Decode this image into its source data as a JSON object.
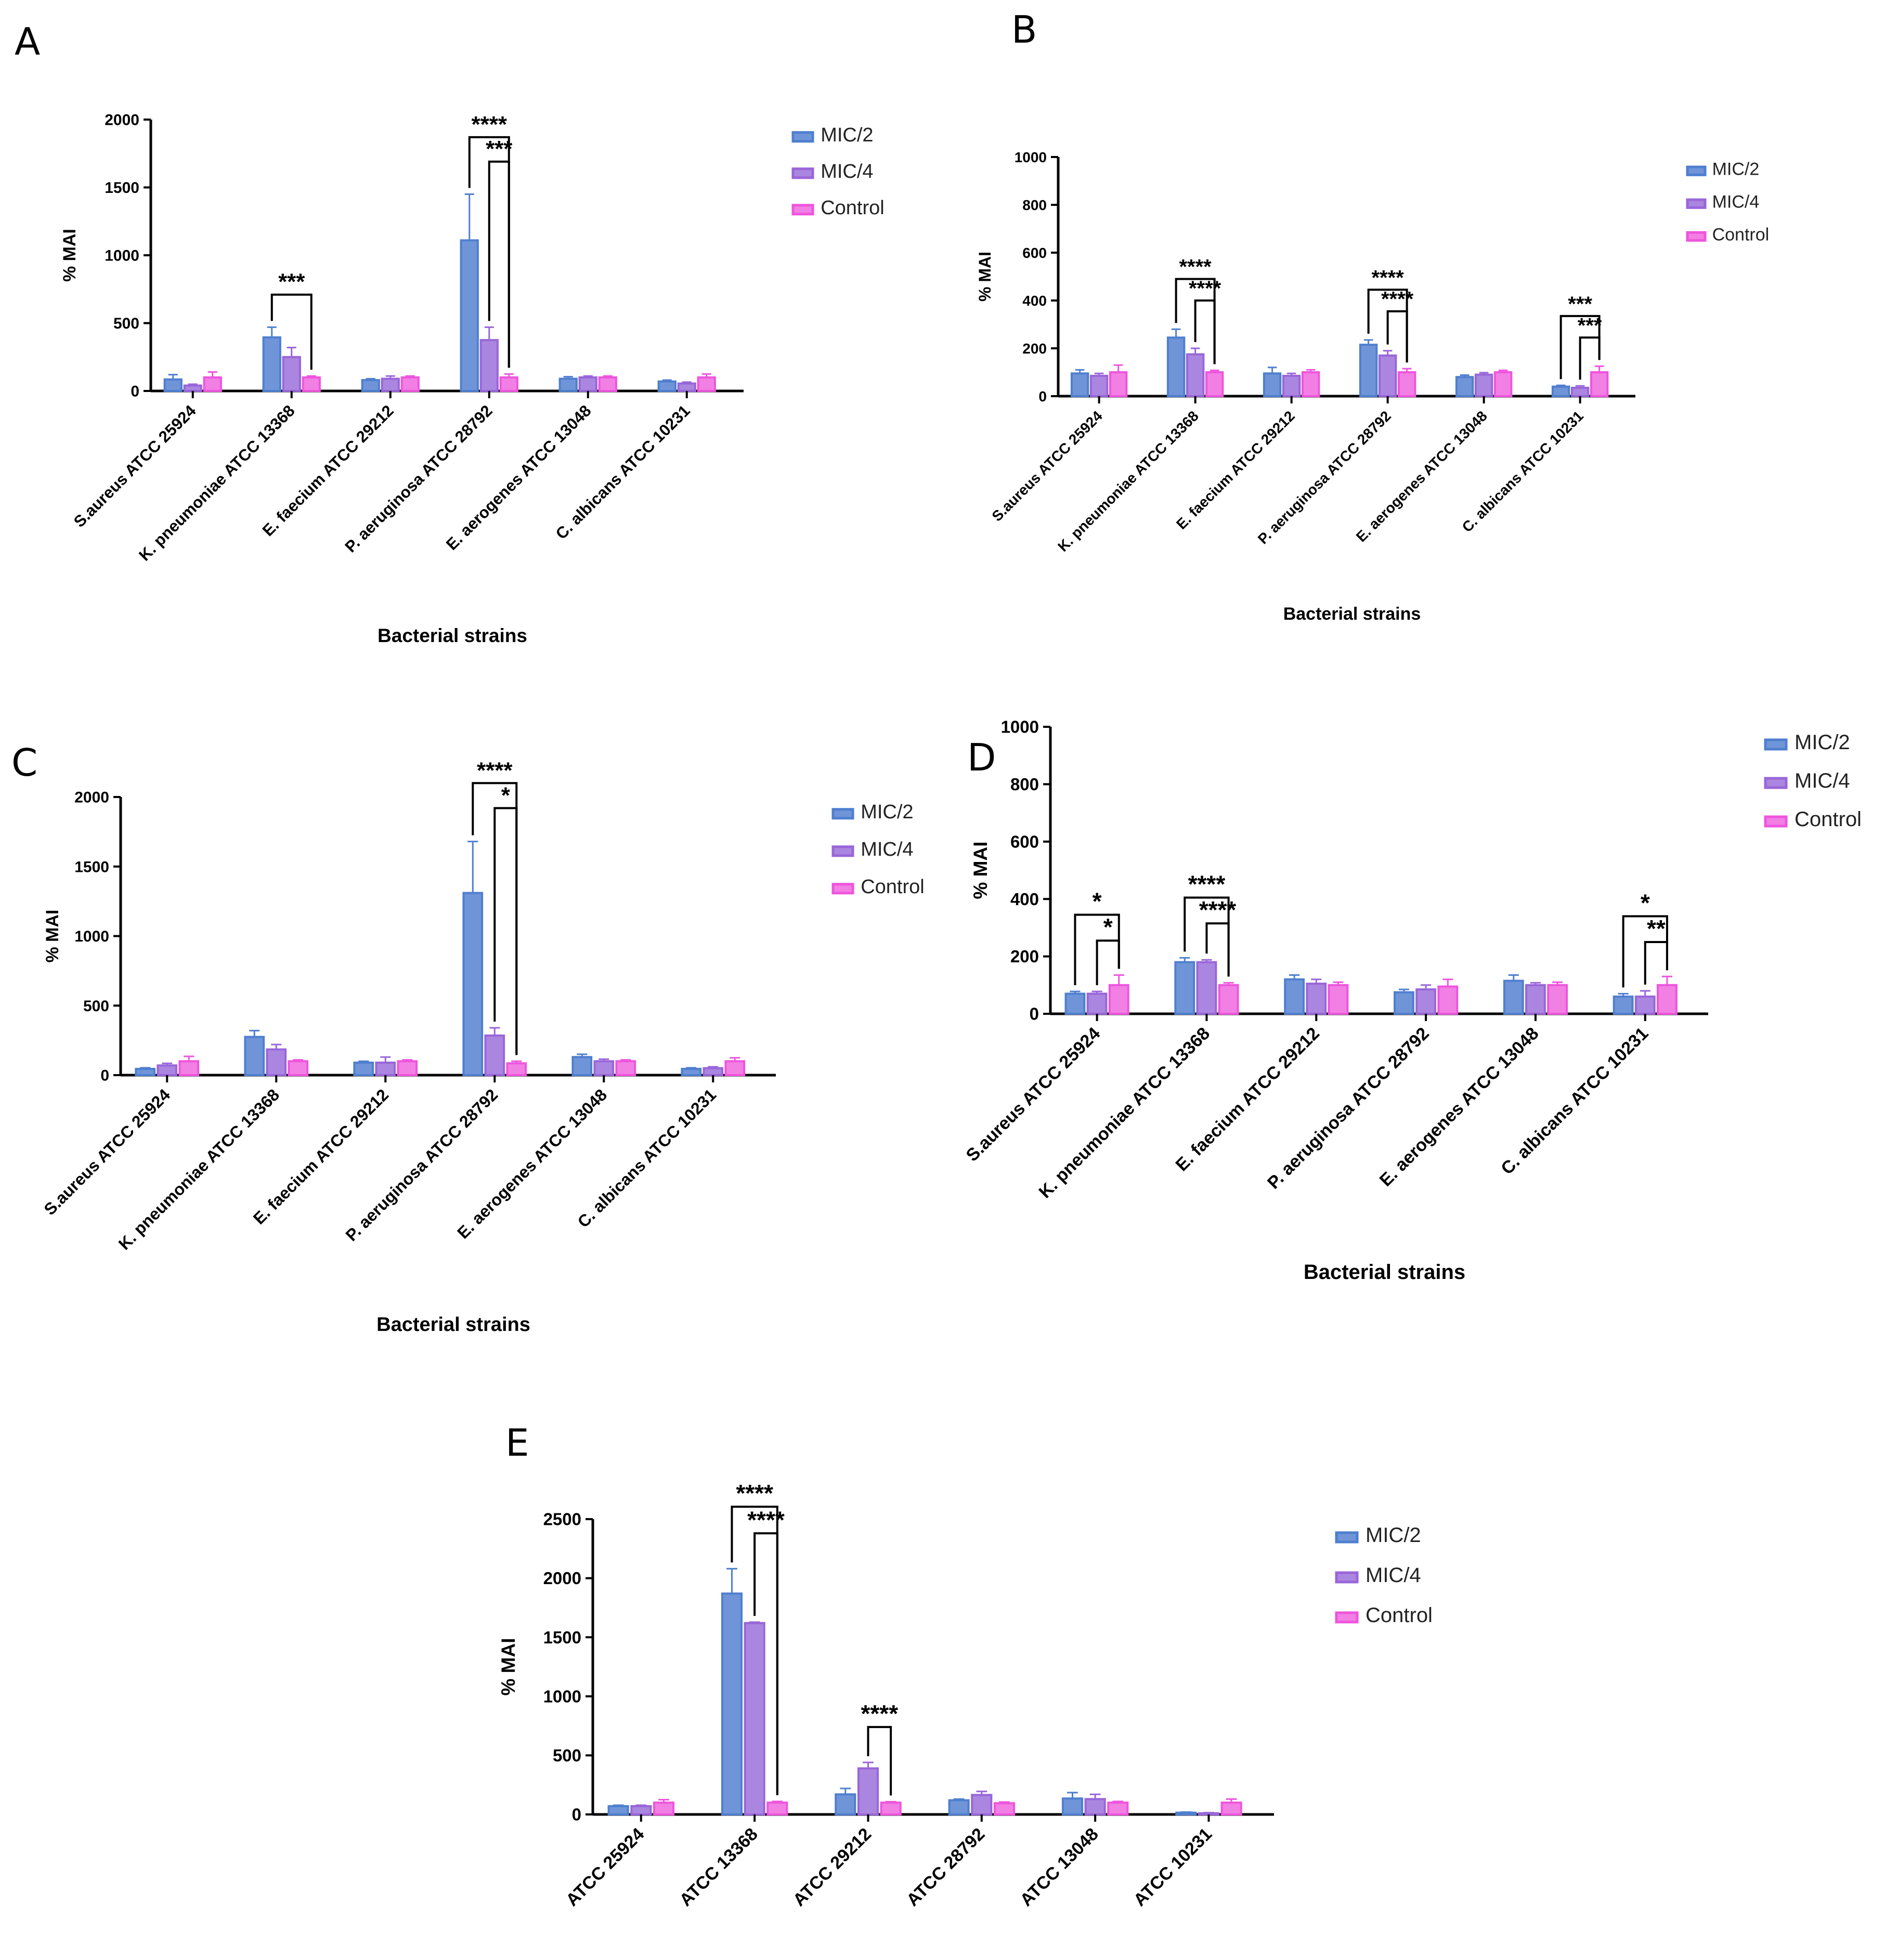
{
  "figure": {
    "categories": [
      "S.aureus ATCC 25924",
      "K. pneumoniae ATCC 13368",
      "E. faecium ATCC 29212",
      "P. aeruginosa ATCC 28792",
      "E. aerogenes ATCC 13048",
      "C. albicans ATCC 10231"
    ],
    "series_names": [
      "MIC/2",
      "MIC/4",
      "Control"
    ],
    "colors": {
      "mic2": "#4f7fcf",
      "mic4": "#9966d9",
      "control": "#ee55dd",
      "axis": "#000000"
    },
    "ylabel": "% MAI",
    "xlabel": "Bacterial strains"
  },
  "chart_data": [
    {
      "panel": "A",
      "type": "bar",
      "title": "",
      "categories": [
        "S.aureus ATCC 25924",
        "K. pneumoniae ATCC 13368",
        "E. faecium ATCC 29212",
        "P. aeruginosa ATCC 28792",
        "E. aerogenes ATCC 13048",
        "C. albicans ATCC 10231"
      ],
      "series": [
        {
          "name": "MIC/2",
          "values": [
            85,
            395,
            80,
            1110,
            90,
            70
          ],
          "errors": [
            35,
            75,
            10,
            340,
            15,
            10
          ]
        },
        {
          "name": "MIC/4",
          "values": [
            40,
            250,
            90,
            375,
            100,
            55
          ],
          "errors": [
            10,
            70,
            20,
            95,
            10,
            10
          ]
        },
        {
          "name": "Control",
          "values": [
            100,
            100,
            100,
            100,
            100,
            100
          ],
          "errors": [
            40,
            10,
            10,
            25,
            10,
            25
          ]
        }
      ],
      "ylim": [
        0,
        2000
      ],
      "yticks": [
        "0",
        "500",
        "1000",
        "1500",
        "2000"
      ],
      "xlabel": "Bacterial strains",
      "ylabel": "% MAI",
      "legend": "right",
      "significance": [
        {
          "cat": 1,
          "from": 0,
          "to": 2,
          "label": "***"
        },
        {
          "cat": 3,
          "from": 0,
          "to": 2,
          "label": "****"
        },
        {
          "cat": 3,
          "from": 1,
          "to": 2,
          "label": "***"
        }
      ]
    },
    {
      "panel": "B",
      "type": "bar",
      "title": "",
      "categories": [
        "S.aureus ATCC 25924",
        "K. pneumoniae ATCC 13368",
        "E. faecium ATCC 29212",
        "P. aeruginosa ATCC 28792",
        "E. aerogenes ATCC 13048",
        "C. albicans ATCC 10231"
      ],
      "series": [
        {
          "name": "MIC/2",
          "values": [
            95,
            245,
            95,
            215,
            80,
            40
          ],
          "errors": [
            15,
            35,
            25,
            20,
            8,
            5
          ]
        },
        {
          "name": "MIC/4",
          "values": [
            85,
            175,
            85,
            170,
            90,
            35
          ],
          "errors": [
            10,
            25,
            10,
            20,
            8,
            8
          ]
        },
        {
          "name": "Control",
          "values": [
            100,
            100,
            100,
            100,
            100,
            100
          ],
          "errors": [
            30,
            8,
            10,
            15,
            8,
            25
          ]
        }
      ],
      "ylim": [
        0,
        1000
      ],
      "yticks": [
        "0",
        "200",
        "400",
        "600",
        "800",
        "1000"
      ],
      "xlabel": "Bacterial strains",
      "ylabel": "% MAI",
      "legend": "right",
      "significance": [
        {
          "cat": 1,
          "from": 0,
          "to": 2,
          "label": "****"
        },
        {
          "cat": 1,
          "from": 1,
          "to": 2,
          "label": "****"
        },
        {
          "cat": 3,
          "from": 0,
          "to": 2,
          "label": "****"
        },
        {
          "cat": 3,
          "from": 1,
          "to": 2,
          "label": "****"
        },
        {
          "cat": 5,
          "from": 0,
          "to": 2,
          "label": "***"
        },
        {
          "cat": 5,
          "from": 1,
          "to": 2,
          "label": "***"
        }
      ]
    },
    {
      "panel": "C",
      "type": "bar",
      "title": "",
      "categories": [
        "S.aureus ATCC 25924",
        "K. pneumoniae ATCC 13368",
        "E. faecium ATCC 29212",
        "P. aeruginosa ATCC 28792",
        "E. aerogenes ATCC 13048",
        "C. albicans ATCC 10231"
      ],
      "series": [
        {
          "name": "MIC/2",
          "values": [
            45,
            275,
            90,
            1310,
            130,
            45
          ],
          "errors": [
            8,
            45,
            10,
            370,
            20,
            8
          ]
        },
        {
          "name": "MIC/4",
          "values": [
            70,
            185,
            90,
            285,
            100,
            50
          ],
          "errors": [
            15,
            35,
            40,
            55,
            15,
            10
          ]
        },
        {
          "name": "Control",
          "values": [
            100,
            100,
            100,
            85,
            100,
            100
          ],
          "errors": [
            35,
            10,
            10,
            15,
            10,
            25
          ]
        }
      ],
      "ylim": [
        0,
        2000
      ],
      "yticks": [
        "0",
        "500",
        "1000",
        "1500",
        "2000"
      ],
      "xlabel": "Bacterial strains",
      "ylabel": "% MAI",
      "legend": "right",
      "significance": [
        {
          "cat": 3,
          "from": 0,
          "to": 2,
          "label": "****"
        },
        {
          "cat": 3,
          "from": 1,
          "to": 2,
          "label": "*"
        }
      ]
    },
    {
      "panel": "D",
      "type": "bar",
      "title": "",
      "categories": [
        "S.aureus ATCC 25924",
        "K. pneumoniae ATCC 13368",
        "E. faecium ATCC 29212",
        "P. aeruginosa ATCC 28792",
        "E. aerogenes ATCC 13048",
        "C. albicans ATCC 10231"
      ],
      "series": [
        {
          "name": "MIC/2",
          "values": [
            70,
            180,
            120,
            75,
            115,
            60
          ],
          "errors": [
            8,
            15,
            15,
            10,
            20,
            10
          ]
        },
        {
          "name": "MIC/4",
          "values": [
            70,
            180,
            105,
            85,
            100,
            60
          ],
          "errors": [
            8,
            8,
            15,
            15,
            8,
            20
          ]
        },
        {
          "name": "Control",
          "values": [
            100,
            100,
            100,
            95,
            100,
            100
          ],
          "errors": [
            35,
            8,
            10,
            25,
            10,
            30
          ]
        }
      ],
      "ylim": [
        0,
        1000
      ],
      "yticks": [
        "0",
        "200",
        "400",
        "600",
        "800",
        "1000"
      ],
      "xlabel": "Bacterial strains",
      "ylabel": "% MAI",
      "legend": "right",
      "significance": [
        {
          "cat": 0,
          "from": 0,
          "to": 2,
          "label": "*"
        },
        {
          "cat": 0,
          "from": 1,
          "to": 2,
          "label": "*"
        },
        {
          "cat": 1,
          "from": 0,
          "to": 2,
          "label": "****"
        },
        {
          "cat": 1,
          "from": 1,
          "to": 2,
          "label": "****"
        },
        {
          "cat": 5,
          "from": 0,
          "to": 2,
          "label": "*"
        },
        {
          "cat": 5,
          "from": 1,
          "to": 2,
          "label": "**"
        }
      ]
    },
    {
      "panel": "E",
      "type": "bar",
      "title": "",
      "categories": [
        "ATCC 25924",
        "ATCC 13368",
        "ATCC 29212",
        "ATCC 28792",
        "ATCC 13048",
        "ATCC 10231"
      ],
      "series": [
        {
          "name": "MIC/2",
          "values": [
            70,
            1870,
            170,
            120,
            135,
            15
          ],
          "errors": [
            8,
            210,
            50,
            10,
            50,
            5
          ]
        },
        {
          "name": "MIC/4",
          "values": [
            70,
            1620,
            390,
            165,
            130,
            10
          ],
          "errors": [
            8,
            8,
            50,
            30,
            40,
            5
          ]
        },
        {
          "name": "Control",
          "values": [
            100,
            100,
            100,
            95,
            100,
            100
          ],
          "errors": [
            25,
            10,
            8,
            10,
            10,
            30
          ]
        }
      ],
      "ylim": [
        0,
        2500
      ],
      "yticks": [
        "0",
        "500",
        "1000",
        "1500",
        "2000",
        "2500"
      ],
      "xlabel": "",
      "ylabel": "% MAI",
      "legend": "right",
      "significance": [
        {
          "cat": 1,
          "from": 0,
          "to": 2,
          "label": "****"
        },
        {
          "cat": 1,
          "from": 1,
          "to": 2,
          "label": "****"
        },
        {
          "cat": 2,
          "from": 1,
          "to": 2,
          "label": "****"
        }
      ]
    }
  ]
}
